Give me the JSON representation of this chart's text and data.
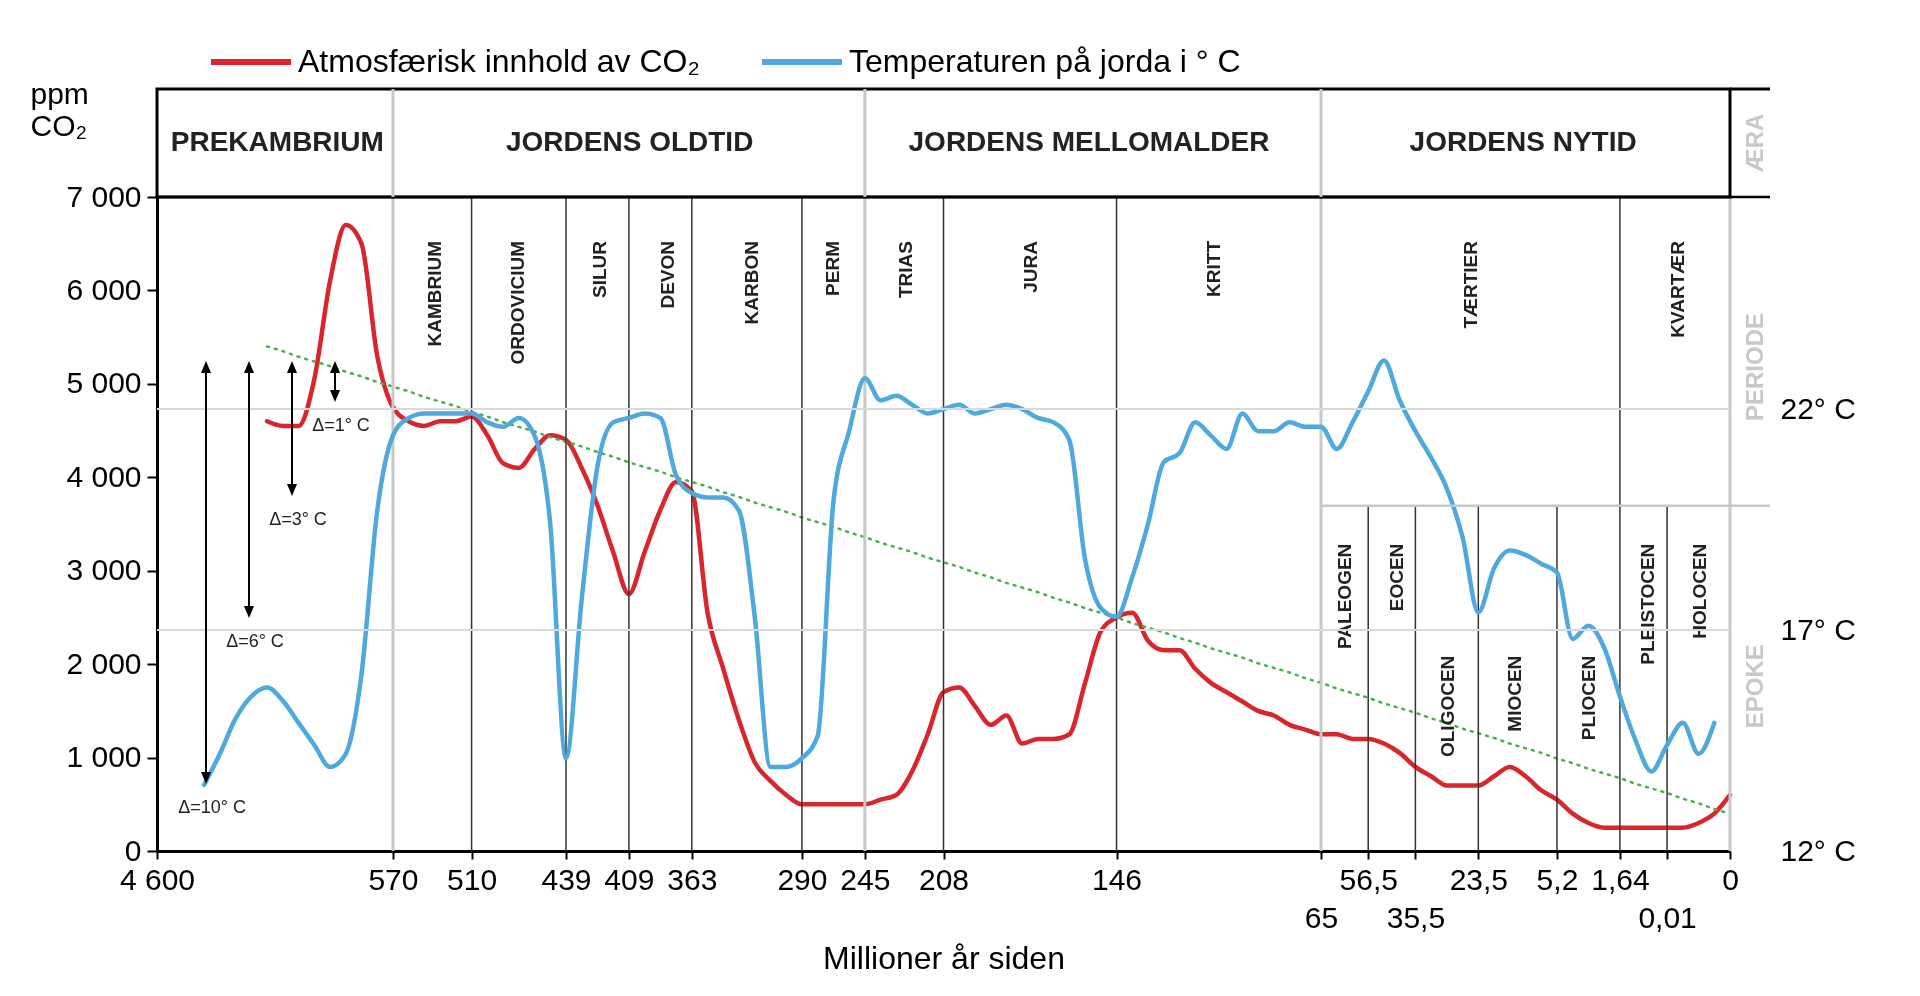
{
  "chart_data": {
    "type": "line",
    "xlabel": "Millioner år siden",
    "ylabel": "ppm CO₂",
    "legend": "top",
    "categories": [
      "4 600",
      null,
      null,
      null,
      null,
      null,
      null,
      null,
      null,
      null,
      null,
      null,
      null,
      null,
      null,
      "570",
      null,
      null,
      null,
      null,
      "510",
      null,
      null,
      null,
      null,
      null,
      "439",
      null,
      null,
      null,
      "409",
      null,
      null,
      null,
      "363",
      null,
      null,
      null,
      null,
      null,
      null,
      "290",
      null,
      null,
      null,
      "245",
      null,
      null,
      null,
      null,
      "208",
      null,
      null,
      null,
      null,
      null,
      null,
      null,
      null,
      null,
      null,
      "146",
      null,
      null,
      null,
      null,
      null,
      null,
      null,
      null,
      null,
      null,
      null,
      null,
      "65",
      null,
      null,
      "56,5",
      null,
      null,
      "35,5",
      null,
      null,
      null,
      "23,5",
      null,
      null,
      null,
      null,
      "5,2",
      null,
      null,
      null,
      "1,64",
      null,
      null,
      "0,01",
      null,
      null,
      null,
      "0"
    ],
    "ylim": [
      0,
      7000
    ],
    "yticks": [
      0,
      {
        "value": 1000,
        "label": "1 000"
      },
      {
        "value": 2000,
        "label": "2 000"
      },
      {
        "value": 3000,
        "label": "3 000"
      },
      {
        "value": 4000,
        "label": "4 000"
      },
      {
        "value": 5000,
        "label": "5 000"
      },
      {
        "value": 6000,
        "label": "6 000"
      },
      {
        "value": 7000,
        "label": "7 000"
      }
    ],
    "y2lim": [
      12,
      26.8
    ],
    "y2ticks": [
      {
        "value": 12,
        "label": "12° C"
      },
      {
        "value": 17,
        "label": "17° C"
      },
      {
        "value": 22,
        "label": "22° C"
      }
    ],
    "series": [
      {
        "name": "Atmosfærisk innhold av CO₂",
        "color": "#d9262c",
        "values": [
          null,
          null,
          null,
          null,
          null,
          null,
          null,
          4600,
          4550,
          4550,
          5050,
          6100,
          6700,
          6500,
          5300,
          4750,
          4600,
          4550,
          4600,
          4600,
          4650,
          4450,
          4150,
          4100,
          4300,
          4450,
          4400,
          4100,
          3700,
          3200,
          2750,
          3200,
          3650,
          3950,
          3850,
          2550,
          1950,
          1400,
          950,
          750,
          600,
          500,
          500,
          500,
          500,
          500,
          550,
          600,
          850,
          1250,
          1700,
          1750,
          1550,
          1350,
          1450,
          1150,
          1200,
          1200,
          1250,
          1800,
          2350,
          2500,
          2550,
          2250,
          2150,
          2150,
          1950,
          1800,
          1700,
          1600,
          1500,
          1450,
          1350,
          1300,
          1250,
          1250,
          1200,
          1200,
          1150,
          1050,
          900,
          800,
          700,
          700,
          700,
          800,
          900,
          800,
          650,
          550,
          400,
          300,
          250,
          250,
          250,
          250,
          250,
          250,
          300,
          400,
          600
        ]
      },
      {
        "name": "Temperaturen på jorda i ° C",
        "color": "#4fa9dc",
        "axis": "y2",
        "values": [
          null,
          null,
          null,
          13.5,
          14.2,
          15.0,
          15.5,
          15.7,
          15.4,
          14.9,
          14.4,
          13.9,
          14.2,
          16.0,
          19.7,
          21.4,
          21.8,
          21.9,
          21.9,
          21.9,
          21.9,
          21.7,
          21.6,
          21.8,
          21.4,
          19.4,
          14.1,
          17.7,
          20.7,
          21.7,
          21.8,
          21.9,
          21.8,
          20.5,
          20.1,
          20.0,
          20.0,
          19.7,
          17.3,
          13.9,
          13.9,
          14.1,
          14.6,
          19.9,
          21.5,
          22.7,
          22.2,
          22.3,
          22.1,
          21.9,
          22.0,
          22.1,
          21.9,
          22.0,
          22.1,
          22.0,
          21.8,
          21.7,
          21.3,
          18.6,
          17.5,
          17.3,
          18.2,
          19.4,
          20.8,
          21.0,
          21.7,
          21.4,
          21.1,
          21.9,
          21.5,
          21.5,
          21.7,
          21.6,
          21.6,
          21.1,
          21.7,
          22.4,
          23.1,
          22.2,
          21.5,
          20.9,
          20.2,
          19.1,
          17.4,
          18.4,
          18.8,
          18.7,
          18.5,
          18.3,
          16.8,
          17.1,
          16.6,
          15.5,
          14.5,
          13.8,
          14.4,
          14.9,
          14.2,
          14.9,
          null
        ]
      },
      {
        "type": "line",
        "color": "#4caf50",
        "line_style": "dotted",
        "values": [
          null,
          null,
          null,
          null,
          null,
          null,
          null,
          5400,
          5350,
          5290,
          5240,
          5190,
          5130,
          5080,
          5020,
          4970,
          4920,
          4860,
          4810,
          4760,
          4700,
          4650,
          4590,
          4540,
          4490,
          4430,
          4380,
          4330,
          4270,
          4220,
          4160,
          4110,
          4060,
          4000,
          3950,
          3900,
          3840,
          3790,
          3730,
          3680,
          3630,
          3570,
          3520,
          3470,
          3410,
          3360,
          3300,
          3250,
          3200,
          3140,
          3090,
          3040,
          2980,
          2930,
          2870,
          2820,
          2770,
          2710,
          2660,
          2600,
          2550,
          2500,
          2440,
          2390,
          2340,
          2280,
          2230,
          2170,
          2120,
          2070,
          2010,
          1960,
          1910,
          1850,
          1800,
          1740,
          1690,
          1640,
          1580,
          1530,
          1480,
          1420,
          1370,
          1310,
          1260,
          1210,
          1150,
          1100,
          1050,
          990,
          940,
          880,
          830,
          780,
          720,
          670,
          620,
          560,
          510,
          450,
          400
        ]
      }
    ],
    "ref_lines": [
      {
        "axis": "y2",
        "value": 22,
        "color": "#d9d9d9"
      },
      {
        "axis": "y2",
        "value": 17,
        "color": "#d9d9d9"
      },
      {
        "axis": "x",
        "value": "570",
        "color": "#c8c8c8"
      },
      {
        "axis": "x",
        "value": "245",
        "color": "#c8c8c8"
      },
      {
        "axis": "x",
        "value": "65",
        "color": "#c8c8c8"
      },
      {
        "axis": "x",
        "value": "510",
        "color": "#333333"
      },
      {
        "axis": "x",
        "value": "439",
        "color": "#333333"
      },
      {
        "axis": "x",
        "value": "409",
        "color": "#333333"
      },
      {
        "axis": "x",
        "value": "363",
        "color": "#333333"
      },
      {
        "axis": "x",
        "value": "290",
        "color": "#333333"
      },
      {
        "axis": "x",
        "value": "208",
        "color": "#333333"
      },
      {
        "axis": "x",
        "value": "146",
        "color": "#333333"
      },
      {
        "axis": "x",
        "value": "1,64",
        "color": "#333333"
      },
      {
        "axis": "x",
        "value": "56,5",
        "color": "#333333"
      },
      {
        "axis": "x",
        "value": "35,5",
        "color": "#333333"
      },
      {
        "axis": "x",
        "value": "23,5",
        "color": "#333333"
      },
      {
        "axis": "x",
        "value": "5,2",
        "color": "#333333"
      },
      {
        "axis": "x",
        "value": "0,01",
        "color": "#333333"
      }
    ],
    "annotations": [
      "PREKAMBRIUM",
      "JORDENS OLDTID",
      "JORDENS MELLOMALDER",
      "JORDENS NYTID",
      "KAMBRIUM",
      "ORDOVICIUM",
      "SILUR",
      "DEVON",
      "KARBON",
      "PERM",
      "TRIAS",
      "JURA",
      "KRITT",
      "TÆRTIER",
      "KVARTÆR",
      "PALEOGEN",
      "EOCEN",
      "OLIGOCEN",
      "MIOCEN",
      "PLIOCEN",
      "PLEISTOCEN",
      "HOLOCEN",
      "ÆRA",
      "PERIODE",
      "EPOKE",
      "Δ=10° C",
      "Δ=6° C",
      "Δ=3° C",
      "Δ=1° C"
    ]
  }
}
